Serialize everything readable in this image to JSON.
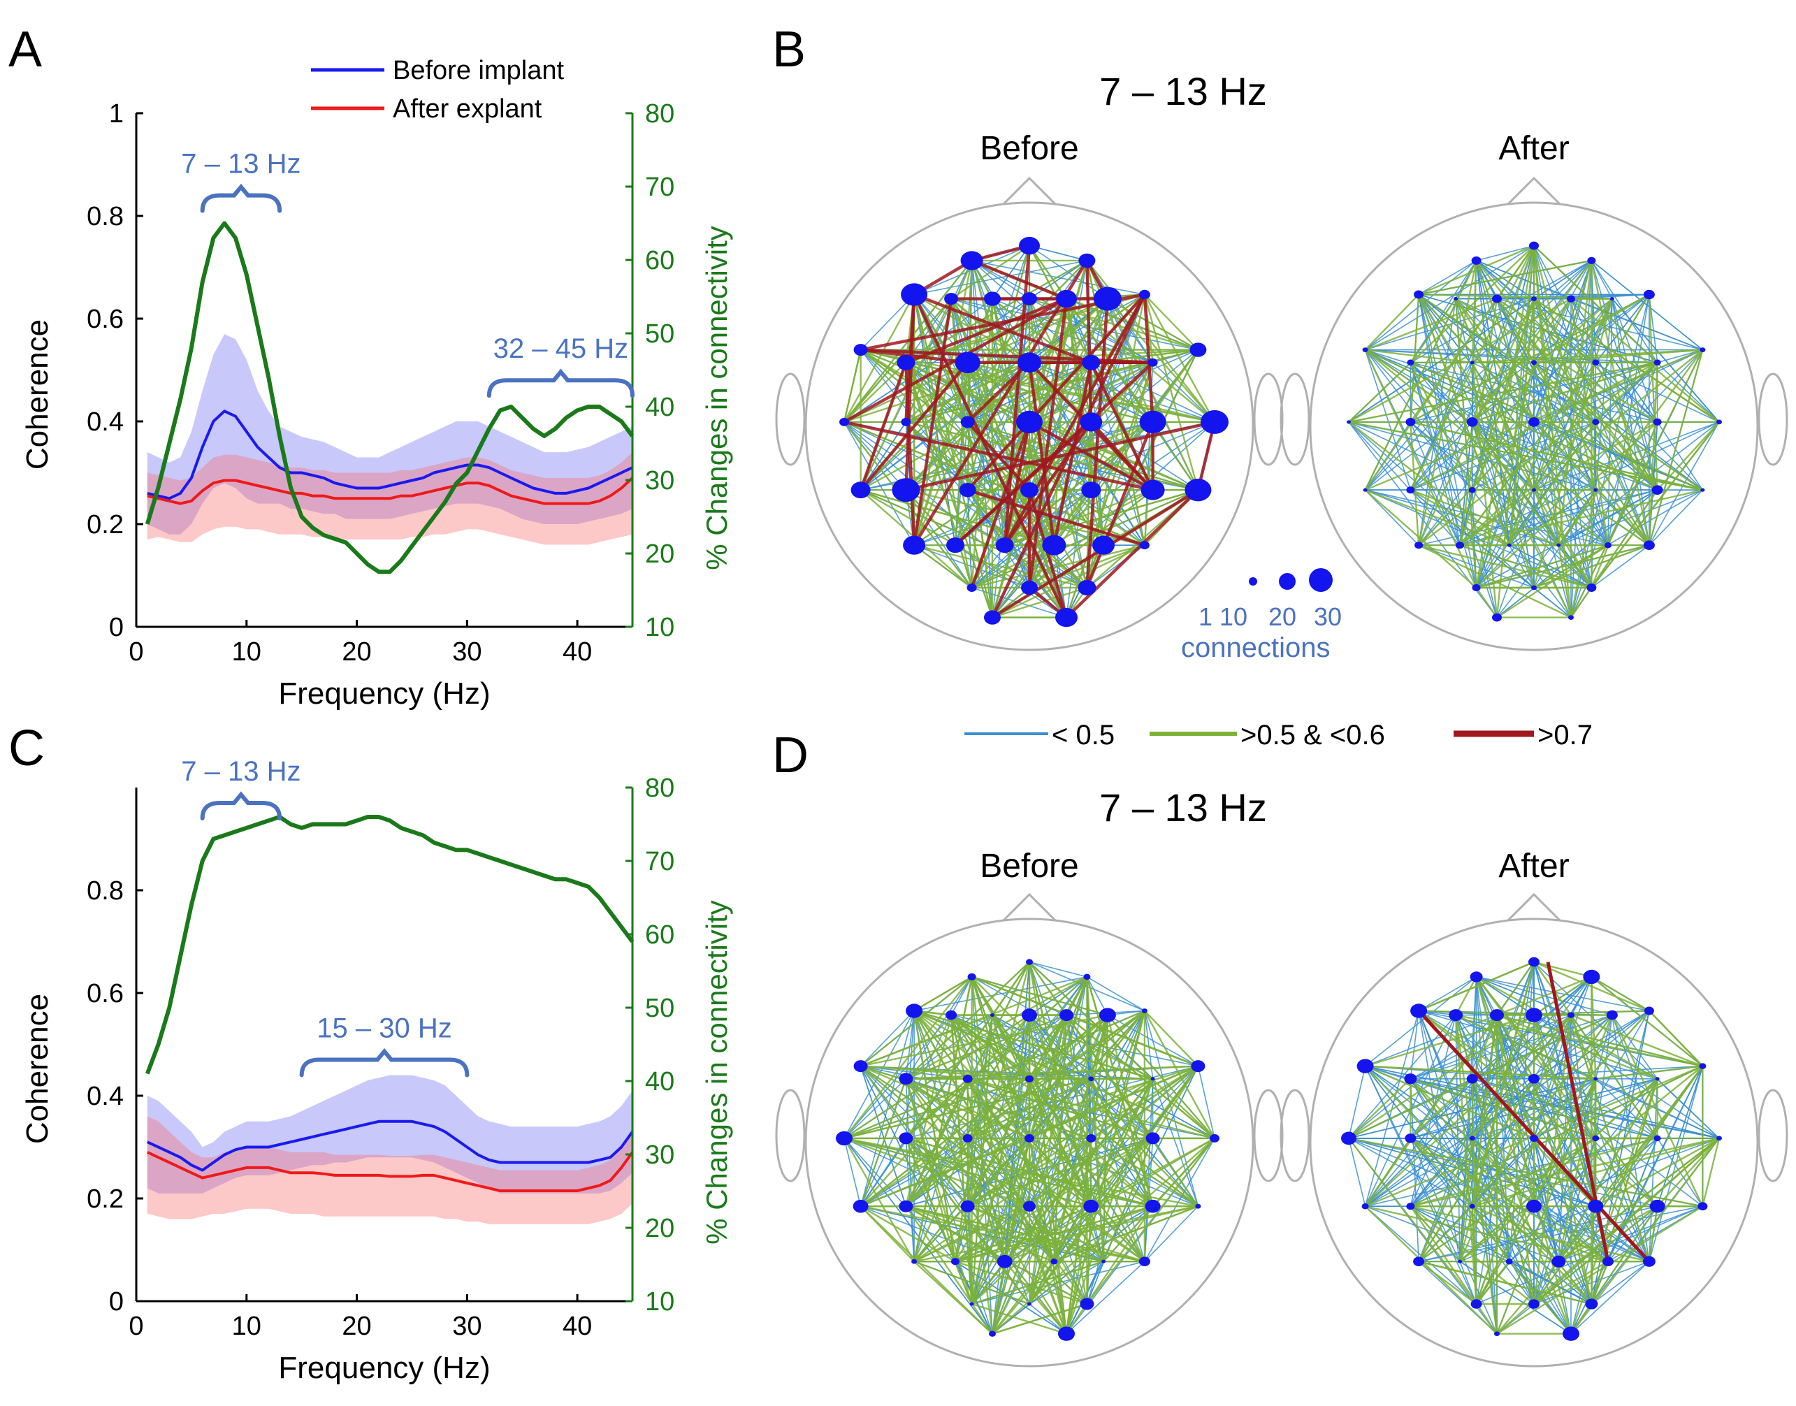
{
  "panels": {
    "A": {
      "letter": "A"
    },
    "B": {
      "letter": "B",
      "title": "7 – 13 Hz",
      "before": "Before",
      "after": "After"
    },
    "C": {
      "letter": "C"
    },
    "D": {
      "letter": "D",
      "title": "7 – 13 Hz",
      "before": "Before",
      "after": "After"
    }
  },
  "node_size_legend": {
    "values": [
      "1",
      "10",
      "20",
      "30"
    ],
    "title": "connections"
  },
  "edge_legend": {
    "items": [
      {
        "label": "< 0.5",
        "color": "#3a8fd0"
      },
      {
        "label": ">0.5 & <0.6",
        "color": "#7cb23a"
      },
      {
        "label": ">0.7",
        "color": "#a0181f"
      }
    ]
  },
  "colors": {
    "before": "#1a1aee",
    "after": "#ee1a1a",
    "change": "#1a7a1a",
    "bracket": "#4a72c0",
    "node": "#1414ee",
    "head": "#b0b0b0"
  },
  "chart_data": [
    {
      "id": "A",
      "type": "line",
      "xlabel": "Frequency (Hz)",
      "ylabel": "Coherence",
      "y2label": "% Changes in connectivity",
      "xlim": [
        0,
        45
      ],
      "ylim": [
        0,
        1
      ],
      "y2lim": [
        10,
        80
      ],
      "xticks": [
        "0",
        "10",
        "20",
        "30",
        "40"
      ],
      "yticks": [
        "0",
        "0.2",
        "0.4",
        "0.6",
        "0.8",
        "1"
      ],
      "y2ticks": [
        "10",
        "20",
        "30",
        "40",
        "50",
        "60",
        "70",
        "80"
      ],
      "legend": [
        "Before implant",
        "After explant"
      ],
      "bands": [
        {
          "label": "7 – 13 Hz",
          "range": [
            6,
            13
          ],
          "level": 0.84
        },
        {
          "label": "32 – 45 Hz",
          "range": [
            32,
            45
          ],
          "level": 0.48
        }
      ],
      "x": [
        1,
        2,
        3,
        4,
        5,
        6,
        7,
        8,
        9,
        10,
        11,
        12,
        13,
        14,
        15,
        16,
        17,
        18,
        19,
        20,
        21,
        22,
        23,
        24,
        25,
        26,
        27,
        28,
        29,
        30,
        31,
        32,
        33,
        34,
        35,
        36,
        37,
        38,
        39,
        40,
        41,
        42,
        43,
        44,
        45
      ],
      "series": [
        {
          "name": "Before implant",
          "values": [
            0.26,
            0.255,
            0.25,
            0.26,
            0.29,
            0.35,
            0.4,
            0.42,
            0.41,
            0.38,
            0.35,
            0.33,
            0.31,
            0.3,
            0.3,
            0.295,
            0.29,
            0.28,
            0.275,
            0.27,
            0.27,
            0.27,
            0.275,
            0.28,
            0.285,
            0.29,
            0.3,
            0.305,
            0.31,
            0.315,
            0.315,
            0.31,
            0.3,
            0.29,
            0.28,
            0.27,
            0.265,
            0.26,
            0.26,
            0.265,
            0.27,
            0.28,
            0.29,
            0.3,
            0.31
          ],
          "upper": [
            0.34,
            0.33,
            0.32,
            0.33,
            0.38,
            0.46,
            0.53,
            0.57,
            0.56,
            0.52,
            0.46,
            0.42,
            0.39,
            0.38,
            0.37,
            0.365,
            0.36,
            0.35,
            0.34,
            0.33,
            0.33,
            0.33,
            0.34,
            0.35,
            0.36,
            0.37,
            0.38,
            0.39,
            0.4,
            0.4,
            0.4,
            0.39,
            0.38,
            0.37,
            0.36,
            0.35,
            0.34,
            0.34,
            0.34,
            0.345,
            0.35,
            0.36,
            0.37,
            0.38,
            0.39
          ],
          "lower": [
            0.2,
            0.19,
            0.18,
            0.18,
            0.2,
            0.24,
            0.27,
            0.28,
            0.27,
            0.25,
            0.24,
            0.24,
            0.24,
            0.23,
            0.23,
            0.225,
            0.22,
            0.22,
            0.21,
            0.21,
            0.21,
            0.21,
            0.21,
            0.215,
            0.22,
            0.225,
            0.23,
            0.235,
            0.24,
            0.24,
            0.24,
            0.235,
            0.23,
            0.22,
            0.21,
            0.205,
            0.2,
            0.2,
            0.2,
            0.2,
            0.205,
            0.21,
            0.215,
            0.22,
            0.23
          ]
        },
        {
          "name": "After explant",
          "values": [
            0.255,
            0.25,
            0.245,
            0.24,
            0.245,
            0.265,
            0.28,
            0.285,
            0.285,
            0.28,
            0.275,
            0.27,
            0.265,
            0.26,
            0.26,
            0.255,
            0.255,
            0.25,
            0.25,
            0.25,
            0.25,
            0.25,
            0.25,
            0.255,
            0.255,
            0.26,
            0.265,
            0.27,
            0.275,
            0.28,
            0.28,
            0.275,
            0.265,
            0.255,
            0.25,
            0.245,
            0.24,
            0.24,
            0.24,
            0.24,
            0.24,
            0.245,
            0.255,
            0.27,
            0.29
          ],
          "upper": [
            0.3,
            0.295,
            0.29,
            0.285,
            0.29,
            0.31,
            0.33,
            0.335,
            0.335,
            0.33,
            0.325,
            0.32,
            0.315,
            0.31,
            0.31,
            0.305,
            0.305,
            0.3,
            0.3,
            0.3,
            0.3,
            0.3,
            0.3,
            0.305,
            0.305,
            0.31,
            0.315,
            0.32,
            0.325,
            0.33,
            0.33,
            0.325,
            0.315,
            0.305,
            0.3,
            0.295,
            0.29,
            0.29,
            0.29,
            0.29,
            0.29,
            0.295,
            0.305,
            0.32,
            0.34
          ],
          "lower": [
            0.17,
            0.175,
            0.17,
            0.165,
            0.165,
            0.18,
            0.19,
            0.195,
            0.195,
            0.19,
            0.19,
            0.185,
            0.18,
            0.18,
            0.18,
            0.175,
            0.175,
            0.17,
            0.17,
            0.17,
            0.17,
            0.17,
            0.17,
            0.17,
            0.175,
            0.175,
            0.18,
            0.18,
            0.185,
            0.19,
            0.19,
            0.185,
            0.18,
            0.175,
            0.17,
            0.165,
            0.16,
            0.16,
            0.16,
            0.16,
            0.16,
            0.165,
            0.17,
            0.175,
            0.18
          ]
        },
        {
          "name": "% Changes in connectivity",
          "axis": "right",
          "values": [
            24,
            29,
            35,
            41,
            48,
            57,
            63,
            65,
            63,
            58,
            51,
            44,
            36,
            29,
            25,
            23.5,
            22.5,
            22,
            21.5,
            20,
            18.5,
            17.5,
            17.5,
            19,
            21,
            23,
            25,
            27,
            29.5,
            31,
            34,
            37,
            39.5,
            40,
            38.5,
            37,
            36,
            37,
            38.5,
            39.5,
            40,
            40,
            39,
            38,
            36
          ]
        }
      ]
    },
    {
      "id": "C",
      "type": "line",
      "xlabel": "Frequency (Hz)",
      "ylabel": "Coherence",
      "y2label": "% Changes in connectivity",
      "xlim": [
        0,
        45
      ],
      "ylim": [
        0,
        1
      ],
      "y2lim": [
        10,
        80
      ],
      "xticks": [
        "0",
        "10",
        "20",
        "30",
        "40"
      ],
      "yticks": [
        "0",
        "0.2",
        "0.4",
        "0.6",
        "0.8"
      ],
      "y2ticks": [
        "10",
        "20",
        "30",
        "40",
        "50",
        "60",
        "70",
        "80"
      ],
      "bands": [
        {
          "label": "7 – 13 Hz",
          "range": [
            6,
            13
          ],
          "level": 0.97
        },
        {
          "label": "15 – 30 Hz",
          "range": [
            15,
            30
          ],
          "level": 0.47
        }
      ],
      "x": [
        1,
        2,
        3,
        4,
        5,
        6,
        7,
        8,
        9,
        10,
        11,
        12,
        13,
        14,
        15,
        16,
        17,
        18,
        19,
        20,
        21,
        22,
        23,
        24,
        25,
        26,
        27,
        28,
        29,
        30,
        31,
        32,
        33,
        34,
        35,
        36,
        37,
        38,
        39,
        40,
        41,
        42,
        43,
        44,
        45
      ],
      "series": [
        {
          "name": "Before implant",
          "values": [
            0.31,
            0.3,
            0.29,
            0.28,
            0.265,
            0.255,
            0.27,
            0.285,
            0.295,
            0.3,
            0.3,
            0.3,
            0.305,
            0.31,
            0.315,
            0.32,
            0.325,
            0.33,
            0.335,
            0.34,
            0.345,
            0.35,
            0.35,
            0.35,
            0.35,
            0.345,
            0.34,
            0.33,
            0.315,
            0.3,
            0.285,
            0.275,
            0.27,
            0.27,
            0.27,
            0.27,
            0.27,
            0.27,
            0.27,
            0.27,
            0.27,
            0.275,
            0.28,
            0.3,
            0.33
          ],
          "upper": [
            0.4,
            0.39,
            0.37,
            0.35,
            0.33,
            0.3,
            0.31,
            0.33,
            0.34,
            0.35,
            0.35,
            0.35,
            0.355,
            0.36,
            0.37,
            0.38,
            0.39,
            0.4,
            0.41,
            0.42,
            0.43,
            0.435,
            0.44,
            0.44,
            0.44,
            0.435,
            0.43,
            0.42,
            0.4,
            0.38,
            0.36,
            0.35,
            0.345,
            0.34,
            0.34,
            0.34,
            0.34,
            0.34,
            0.34,
            0.34,
            0.345,
            0.35,
            0.36,
            0.38,
            0.41
          ],
          "lower": [
            0.22,
            0.21,
            0.21,
            0.21,
            0.21,
            0.21,
            0.22,
            0.23,
            0.24,
            0.245,
            0.245,
            0.245,
            0.25,
            0.255,
            0.26,
            0.265,
            0.265,
            0.27,
            0.27,
            0.275,
            0.28,
            0.28,
            0.28,
            0.28,
            0.28,
            0.275,
            0.27,
            0.26,
            0.25,
            0.24,
            0.23,
            0.22,
            0.21,
            0.21,
            0.21,
            0.21,
            0.21,
            0.21,
            0.21,
            0.21,
            0.21,
            0.21,
            0.215,
            0.23,
            0.25
          ]
        },
        {
          "name": "After explant",
          "values": [
            0.29,
            0.28,
            0.27,
            0.26,
            0.25,
            0.24,
            0.245,
            0.25,
            0.255,
            0.26,
            0.26,
            0.26,
            0.255,
            0.25,
            0.25,
            0.25,
            0.248,
            0.245,
            0.245,
            0.245,
            0.245,
            0.245,
            0.243,
            0.243,
            0.243,
            0.245,
            0.245,
            0.24,
            0.235,
            0.23,
            0.225,
            0.22,
            0.215,
            0.215,
            0.215,
            0.215,
            0.215,
            0.215,
            0.215,
            0.215,
            0.22,
            0.225,
            0.235,
            0.26,
            0.29
          ],
          "upper": [
            0.36,
            0.35,
            0.33,
            0.31,
            0.29,
            0.28,
            0.28,
            0.29,
            0.295,
            0.3,
            0.3,
            0.3,
            0.295,
            0.29,
            0.29,
            0.29,
            0.29,
            0.285,
            0.285,
            0.285,
            0.285,
            0.285,
            0.283,
            0.283,
            0.283,
            0.285,
            0.285,
            0.28,
            0.275,
            0.27,
            0.265,
            0.26,
            0.255,
            0.255,
            0.255,
            0.255,
            0.255,
            0.255,
            0.255,
            0.255,
            0.26,
            0.265,
            0.275,
            0.3,
            0.33
          ],
          "lower": [
            0.17,
            0.165,
            0.16,
            0.16,
            0.16,
            0.165,
            0.17,
            0.17,
            0.175,
            0.18,
            0.18,
            0.18,
            0.175,
            0.17,
            0.17,
            0.17,
            0.165,
            0.165,
            0.165,
            0.165,
            0.165,
            0.165,
            0.165,
            0.165,
            0.165,
            0.165,
            0.165,
            0.16,
            0.16,
            0.155,
            0.155,
            0.15,
            0.15,
            0.15,
            0.15,
            0.15,
            0.15,
            0.15,
            0.15,
            0.15,
            0.15,
            0.155,
            0.16,
            0.17,
            0.19
          ]
        },
        {
          "name": "% Changes in connectivity",
          "axis": "right",
          "values": [
            41,
            45,
            50,
            57,
            64,
            70,
            73,
            73.5,
            74,
            74.5,
            75,
            75.5,
            76,
            75,
            74.5,
            75,
            75,
            75,
            75,
            75.5,
            76,
            76,
            75.5,
            74.5,
            74,
            73.5,
            72.5,
            72,
            71.5,
            71.5,
            71,
            70.5,
            70,
            69.5,
            69,
            68.5,
            68,
            67.5,
            67.5,
            67,
            66.5,
            65,
            63,
            61,
            59
          ]
        }
      ]
    }
  ]
}
